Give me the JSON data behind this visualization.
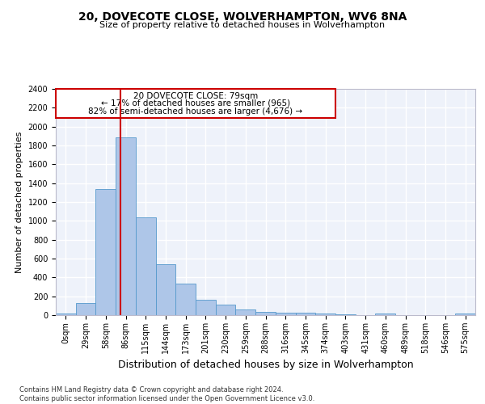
{
  "title1": "20, DOVECOTE CLOSE, WOLVERHAMPTON, WV6 8NA",
  "title2": "Size of property relative to detached houses in Wolverhampton",
  "xlabel": "Distribution of detached houses by size in Wolverhampton",
  "ylabel": "Number of detached properties",
  "footer": "Contains HM Land Registry data © Crown copyright and database right 2024.\nContains public sector information licensed under the Open Government Licence v3.0.",
  "bin_labels": [
    "0sqm",
    "29sqm",
    "58sqm",
    "86sqm",
    "115sqm",
    "144sqm",
    "173sqm",
    "201sqm",
    "230sqm",
    "259sqm",
    "288sqm",
    "316sqm",
    "345sqm",
    "374sqm",
    "403sqm",
    "431sqm",
    "460sqm",
    "489sqm",
    "518sqm",
    "546sqm",
    "575sqm"
  ],
  "bar_values": [
    15,
    125,
    1340,
    1890,
    1040,
    540,
    335,
    165,
    110,
    60,
    38,
    27,
    22,
    17,
    12,
    0,
    18,
    0,
    0,
    0,
    15
  ],
  "bar_color": "#aec6e8",
  "bar_edge_color": "#5599cc",
  "annotation_title": "20 DOVECOTE CLOSE: 79sqm",
  "annotation_line1": "← 17% of detached houses are smaller (965)",
  "annotation_line2": "82% of semi-detached houses are larger (4,676) →",
  "vline_color": "#cc0000",
  "box_edge_color": "#cc0000",
  "vline_x": 2.75,
  "ylim": [
    0,
    2400
  ],
  "yticks": [
    0,
    200,
    400,
    600,
    800,
    1000,
    1200,
    1400,
    1600,
    1800,
    2000,
    2200,
    2400
  ],
  "bg_color": "#eef2fa",
  "grid_color": "#ffffff",
  "title1_fontsize": 10,
  "title2_fontsize": 8,
  "ylabel_fontsize": 8,
  "xlabel_fontsize": 9,
  "tick_fontsize": 7,
  "annot_fontsize": 7.5,
  "footer_fontsize": 6
}
